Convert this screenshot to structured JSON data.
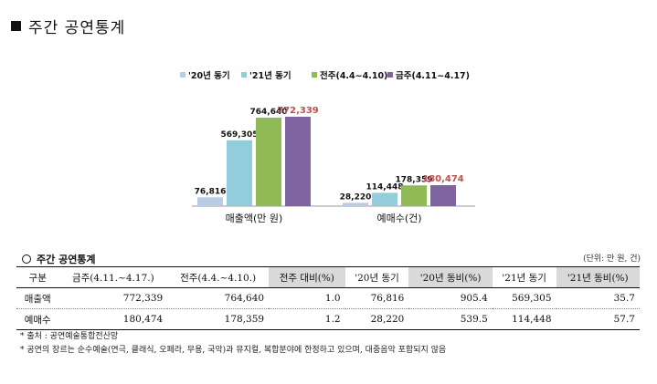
{
  "page_title": "주간 공연통계",
  "chart_data": {
    "type": "bar",
    "title": "",
    "xlabel": "",
    "ylabel": "",
    "categories": [
      "매출액(만 원)",
      "예매수(건)"
    ],
    "series": [
      {
        "name": "'20년 동기",
        "color": "#b8cce4",
        "values": [
          76816,
          28220
        ]
      },
      {
        "name": "'21년 동기",
        "color": "#92cddc",
        "values": [
          569305,
          114448
        ]
      },
      {
        "name": "전주(4.4~4.10)",
        "color": "#8fba55",
        "values": [
          764640,
          178359
        ]
      },
      {
        "name": "금주(4.11~4.17)",
        "color": "#8064a2",
        "values": [
          772339,
          180474
        ]
      }
    ],
    "value_labels": [
      [
        "76,816",
        "28,220"
      ],
      [
        "569,305",
        "114,448"
      ],
      [
        "764,640",
        "178,359"
      ],
      [
        "772,339",
        "180,474"
      ]
    ],
    "highlight_color": "#c0504d",
    "legend_position": "top",
    "grid": false
  },
  "table": {
    "caption": "주간 공연통계",
    "unit": "(단위: 만 원, 건)",
    "headers": [
      "구분",
      "금주(4.11.~4.17.)",
      "전주(4.4.~4.10.)",
      "전주 대비(%)",
      "'20년 동기",
      "'20년 동비(%)",
      "'21년 동기",
      "'21년 동비(%)"
    ],
    "shaded_headers": [
      3,
      5,
      7
    ],
    "rows": [
      [
        "매출액",
        "772,339",
        "764,640",
        "1.0",
        "76,816",
        "905.4",
        "569,305",
        "35.7"
      ],
      [
        "예매수",
        "180,474",
        "178,359",
        "1.2",
        "28,220",
        "539.5",
        "114,448",
        "57.7"
      ]
    ]
  },
  "notes": [
    "* 출처 : 공연예술통합전산망",
    "* 공연의 장르는 순수예술(연극, 클래식, 오페라, 무용, 국악)과 뮤지컬, 복합분야에 한정하고 있으며, 대중음악 포함되지 않음"
  ]
}
